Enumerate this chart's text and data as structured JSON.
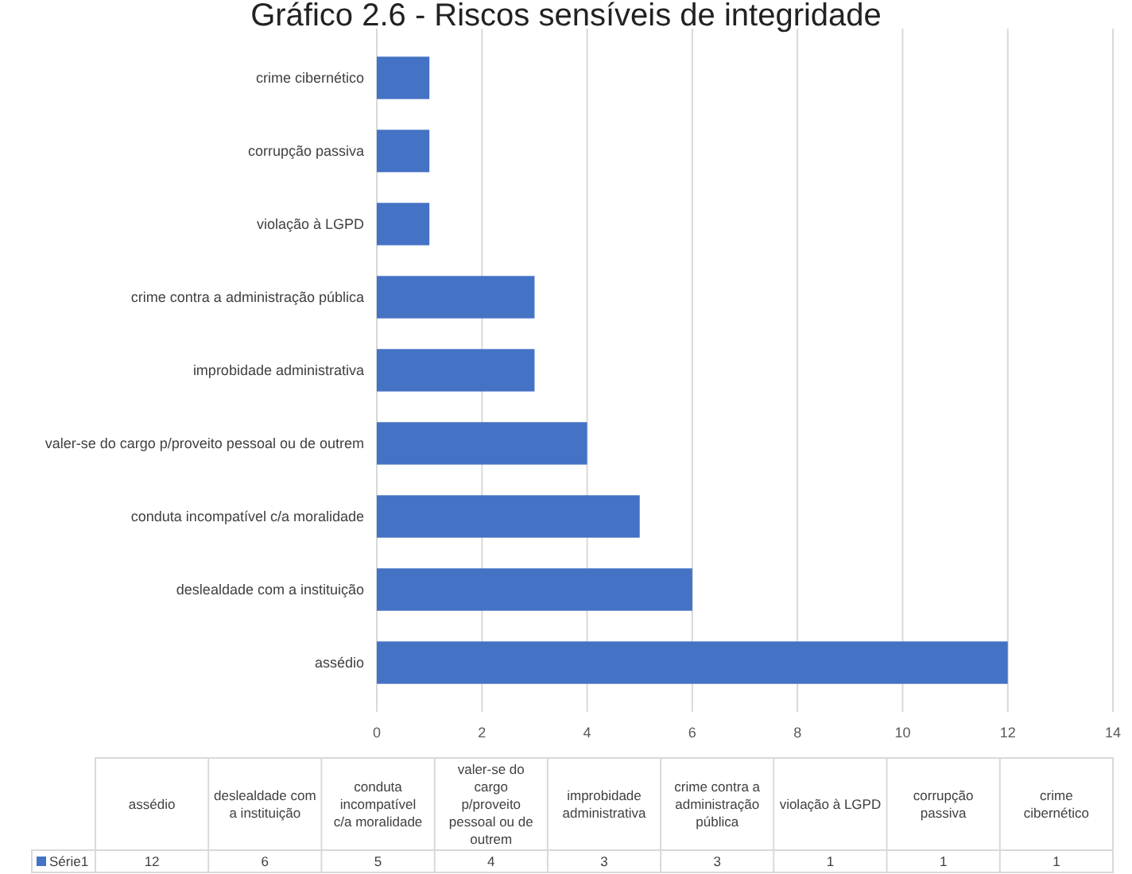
{
  "chart_data": [
    {
      "type": "bar",
      "orientation": "horizontal",
      "title": "Gráfico 2.6 - Riscos sensíveis de integridade",
      "categories": [
        "crime cibernético",
        "corrupção passiva",
        "violação à LGPD",
        "crime contra a administração pública",
        "improbidade administrativa",
        "valer-se do cargo p/proveito pessoal ou de outrem",
        "conduta incompatível c/a moralidade",
        "deslealdade com a instituição",
        "assédio"
      ],
      "series": [
        {
          "color": "#4472c4",
          "values": [
            1,
            1,
            1,
            3,
            3,
            4,
            5,
            6,
            12
          ]
        }
      ],
      "xlim": [
        0,
        14
      ],
      "xticks": [
        0,
        2,
        4,
        6,
        8,
        10,
        12,
        14
      ],
      "grid": "x"
    },
    {
      "type": "other",
      "categories": [
        "assédio",
        "deslealdade com a instituição",
        "conduta incompatível c/a moralidade",
        "valer-se do cargo p/proveito pessoal ou de outrem",
        "improbidade administrativa",
        "crime contra a administração pública",
        "violação à LGPD",
        "corrupção passiva",
        "crime cibernético"
      ],
      "series": [
        {
          "name": "Série1",
          "color": "#4472c4",
          "values": [
            12,
            6,
            5,
            4,
            3,
            3,
            1,
            1,
            1
          ]
        }
      ],
      "data_labels": true
    }
  ]
}
